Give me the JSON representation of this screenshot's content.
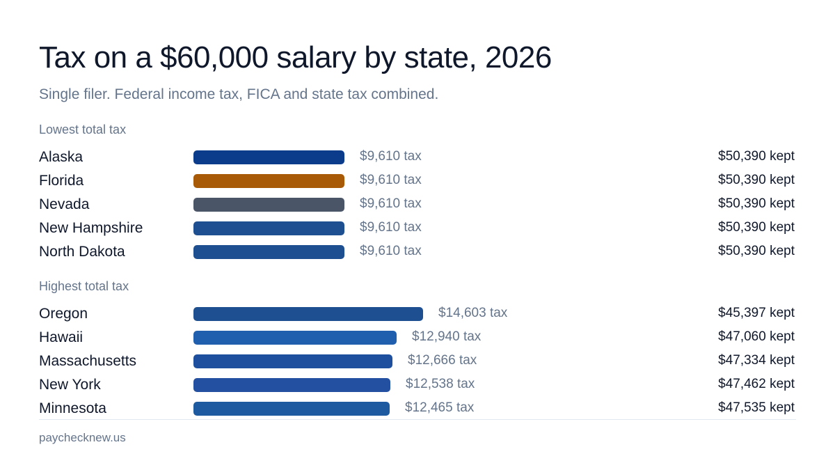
{
  "title": "Tax on a $60,000 salary by state, 2026",
  "subtitle": "Single filer. Federal income tax, FICA and state tax combined.",
  "source": "paychecknew.us",
  "chart_data": {
    "type": "bar",
    "orientation": "horizontal",
    "title": "Tax on a $60,000 salary by state, 2026",
    "subtitle": "Single filer. Federal income tax, FICA and state tax combined.",
    "groups": [
      {
        "label": "Lowest total tax",
        "rows": [
          {
            "state": "Alaska",
            "tax": 9610,
            "tax_label": "$9,610 tax",
            "kept_label": "$50,390 kept",
            "color": "#0b3c8c"
          },
          {
            "state": "Florida",
            "tax": 9610,
            "tax_label": "$9,610 tax",
            "kept_label": "$50,390 kept",
            "color": "#a85a06"
          },
          {
            "state": "Nevada",
            "tax": 9610,
            "tax_label": "$9,610 tax",
            "kept_label": "$50,390 kept",
            "color": "#4a5568"
          },
          {
            "state": "New Hampshire",
            "tax": 9610,
            "tax_label": "$9,610 tax",
            "kept_label": "$50,390 kept",
            "color": "#1e4f91"
          },
          {
            "state": "North Dakota",
            "tax": 9610,
            "tax_label": "$9,610 tax",
            "kept_label": "$50,390 kept",
            "color": "#1e4f91"
          }
        ]
      },
      {
        "label": "Highest total tax",
        "rows": [
          {
            "state": "Oregon",
            "tax": 14603,
            "tax_label": "$14,603 tax",
            "kept_label": "$45,397 kept",
            "color": "#1e4f91"
          },
          {
            "state": "Hawaii",
            "tax": 12940,
            "tax_label": "$12,940 tax",
            "kept_label": "$47,060 kept",
            "color": "#1f5fae"
          },
          {
            "state": "Massachusetts",
            "tax": 12666,
            "tax_label": "$12,666 tax",
            "kept_label": "$47,334 kept",
            "color": "#1d4f9e"
          },
          {
            "state": "New York",
            "tax": 12538,
            "tax_label": "$12,538 tax",
            "kept_label": "$47,462 kept",
            "color": "#2350a0"
          },
          {
            "state": "Minnesota",
            "tax": 12465,
            "tax_label": "$12,465 tax",
            "kept_label": "$47,535 kept",
            "color": "#1e5aa0"
          }
        ]
      }
    ]
  }
}
